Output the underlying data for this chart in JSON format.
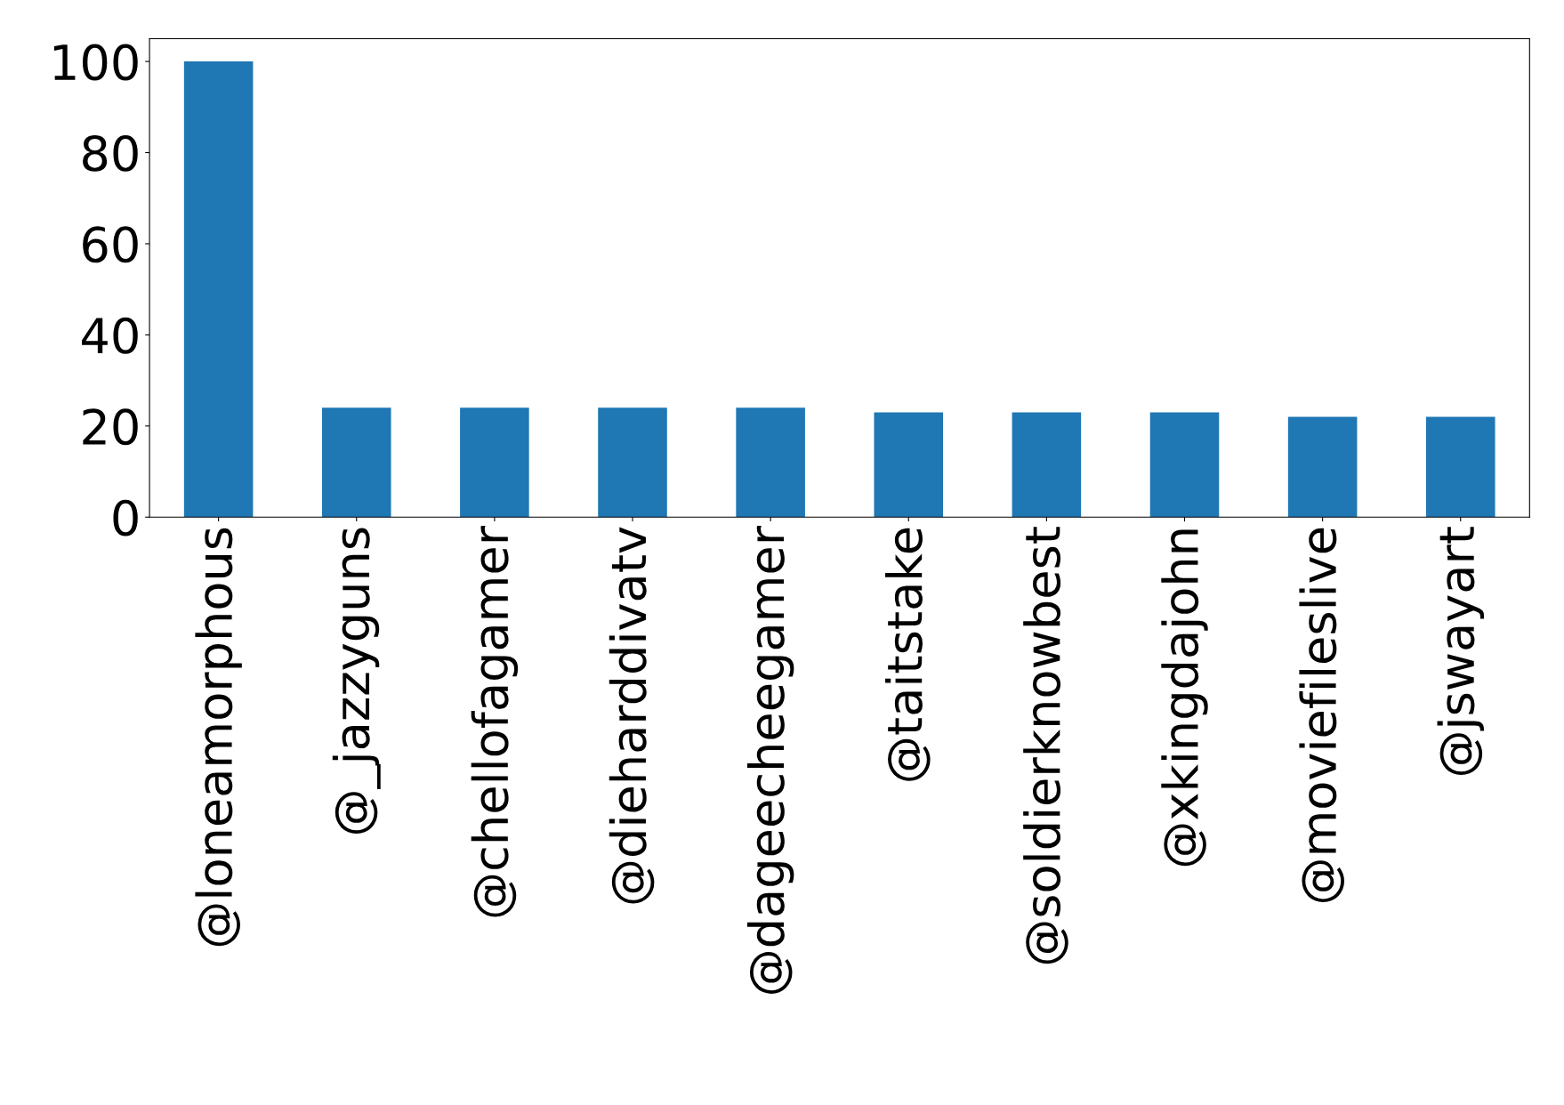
{
  "chart_data": {
    "type": "bar",
    "categories": [
      "@loneamorphous",
      "@_jazzyguns",
      "@chellofagamer",
      "@dieharddivatv",
      "@dageecheegamer",
      "@taitstake",
      "@soldierknowbest",
      "@xkingdajohn",
      "@moviefileslive",
      "@jswayart"
    ],
    "values": [
      100,
      24,
      24,
      24,
      24,
      23,
      23,
      23,
      22,
      22
    ],
    "color": "#1f77b4",
    "ylim": [
      0,
      105
    ],
    "yticks": [
      0,
      20,
      40,
      60,
      80,
      100
    ],
    "grid": false,
    "legend": false
  }
}
